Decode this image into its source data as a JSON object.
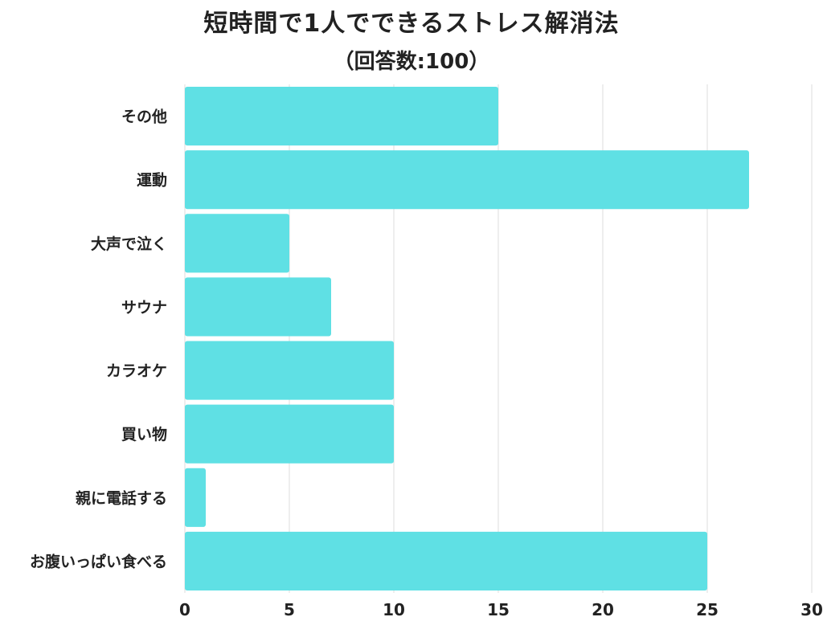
{
  "chart_data": {
    "type": "bar",
    "orientation": "horizontal",
    "title": "短時間で1人でできるストレス解消法",
    "subtitle": "（回答数:100）",
    "categories": [
      "その他",
      "運動",
      "大声で泣く",
      "サウナ",
      "カラオケ",
      "買い物",
      "親に電話する",
      "お腹いっぱい食べる"
    ],
    "values": [
      15,
      27,
      5,
      7,
      10,
      10,
      1,
      25
    ],
    "xlim": [
      0,
      30
    ],
    "xticks": [
      "0",
      "5",
      "10",
      "15",
      "20",
      "25",
      "30"
    ],
    "grid": "vertical",
    "bar_color": "#5fe0e4",
    "grid_color": "#dcdcdc",
    "text_color": "#222222"
  }
}
